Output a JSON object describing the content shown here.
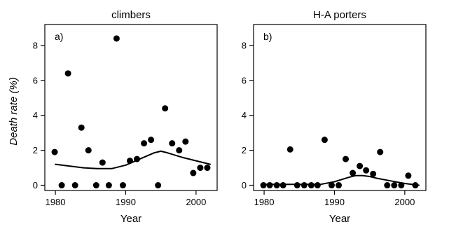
{
  "figure": {
    "ylabel": "Death rate (%)"
  },
  "chart_data": [
    {
      "type": "scatter",
      "title": "climbers",
      "panel_label": "a)",
      "xlabel": "Year",
      "ylabel": "Death rate (%)",
      "xlim": [
        1978.5,
        2003
      ],
      "ylim": [
        -0.3,
        9.2
      ],
      "xticks": [
        1980,
        1990,
        2000
      ],
      "yticks": [
        0,
        2,
        4,
        6,
        8
      ],
      "grid": false,
      "series": [
        {
          "kind": "points",
          "color": "#000000",
          "x": [
            1979.9,
            1980.9,
            1981.8,
            1982.8,
            1983.7,
            1984.7,
            1985.8,
            1986.7,
            1987.6,
            1988.7,
            1989.6,
            1990.6,
            1991.6,
            1992.6,
            1993.6,
            1994.6,
            1995.6,
            1996.6,
            1997.6,
            1998.5,
            1999.6,
            2000.6,
            2001.6
          ],
          "y": [
            1.9,
            0.0,
            6.4,
            0.0,
            3.3,
            2.0,
            0.0,
            1.3,
            0.0,
            8.4,
            0.0,
            1.4,
            1.5,
            2.4,
            2.6,
            0.0,
            4.4,
            2.4,
            2.0,
            2.5,
            0.7,
            1.0,
            1.0
          ]
        },
        {
          "kind": "line",
          "color": "#000000",
          "x": [
            1980,
            1982,
            1984,
            1986,
            1988,
            1990,
            1992,
            1994,
            1995,
            1996,
            1998,
            2000,
            2002
          ],
          "y": [
            1.2,
            1.1,
            1.0,
            0.95,
            0.95,
            1.15,
            1.5,
            1.85,
            1.95,
            1.85,
            1.6,
            1.4,
            1.2
          ]
        }
      ]
    },
    {
      "type": "scatter",
      "title": "H-A porters",
      "panel_label": "b)",
      "xlabel": "Year",
      "ylabel": "",
      "xlim": [
        1978.5,
        2003
      ],
      "ylim": [
        -0.3,
        9.2
      ],
      "xticks": [
        1980,
        1990,
        2000
      ],
      "yticks": [
        0,
        2,
        4,
        6,
        8
      ],
      "grid": false,
      "series": [
        {
          "kind": "points",
          "color": "#000000",
          "x": [
            1979.9,
            1980.8,
            1981.8,
            1982.7,
            1983.7,
            1984.7,
            1985.7,
            1986.7,
            1987.6,
            1988.6,
            1989.6,
            1990.6,
            1991.6,
            1992.6,
            1993.6,
            1994.5,
            1995.5,
            1996.5,
            1997.5,
            1998.5,
            1999.5,
            2000.5,
            2001.5
          ],
          "y": [
            0.0,
            0.0,
            0.0,
            0.0,
            2.05,
            0.0,
            0.0,
            0.0,
            0.0,
            2.6,
            0.0,
            0.0,
            1.5,
            0.7,
            1.1,
            0.85,
            0.65,
            1.9,
            0.0,
            0.0,
            0.0,
            0.55,
            0.0
          ]
        },
        {
          "kind": "line",
          "color": "#000000",
          "x": [
            1980,
            1982,
            1984,
            1986,
            1988,
            1990,
            1992,
            1993,
            1994,
            1995,
            1996,
            1998,
            2000,
            2002
          ],
          "y": [
            0.05,
            0.05,
            0.05,
            0.05,
            0.05,
            0.2,
            0.45,
            0.55,
            0.55,
            0.5,
            0.4,
            0.25,
            0.1,
            0.0
          ]
        }
      ]
    }
  ]
}
